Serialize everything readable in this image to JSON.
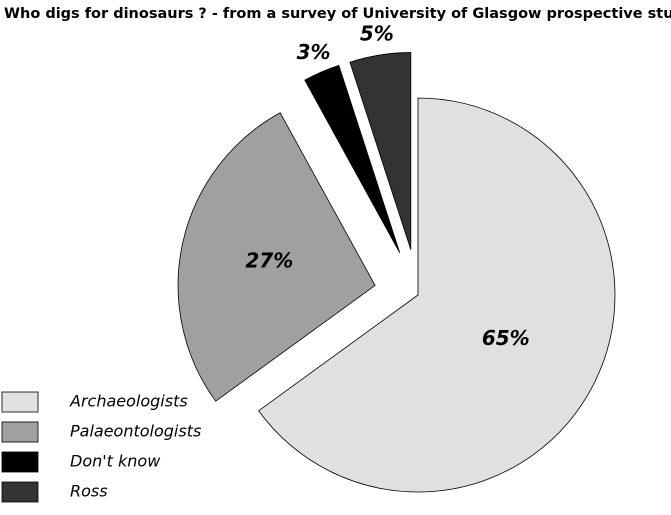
{
  "chart_data": {
    "type": "pie",
    "title": "Who digs for dinosaurs ?  -  from a survey of University of Glasgow prospective students",
    "categories": [
      "Archaeologists",
      "Palaeontologists",
      "Don't know",
      "Ross"
    ],
    "values": [
      65,
      27,
      3,
      5
    ],
    "value_labels": [
      "65%",
      "27%",
      "3%",
      "5%"
    ],
    "colors": [
      "#e0e0e0",
      "#a0a0a0",
      "#000000",
      "#333333"
    ],
    "legend": "bottom-left"
  }
}
